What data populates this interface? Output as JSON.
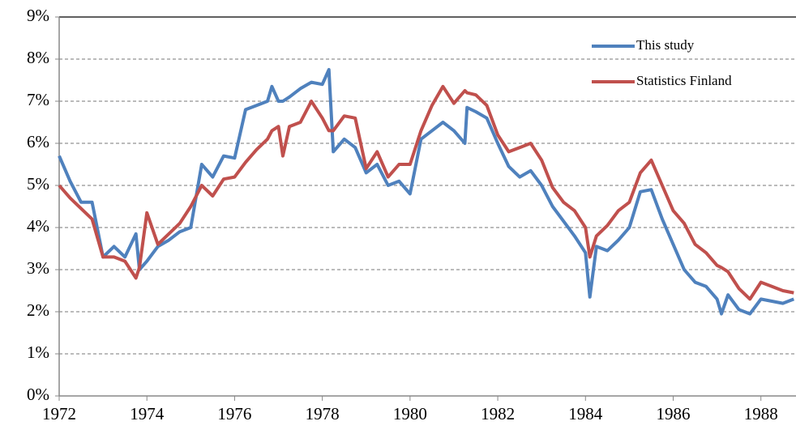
{
  "chart_data": {
    "type": "line",
    "x": [
      1972,
      1972.25,
      1972.5,
      1972.75,
      1973,
      1973.25,
      1973.5,
      1973.75,
      1973.83,
      1974,
      1974.25,
      1974.5,
      1974.75,
      1975,
      1975.25,
      1975.5,
      1975.75,
      1976,
      1976.25,
      1976.5,
      1976.75,
      1976.85,
      1977,
      1977.1,
      1977.25,
      1977.5,
      1977.75,
      1978,
      1978.15,
      1978.25,
      1978.5,
      1978.75,
      1979,
      1979.25,
      1979.5,
      1979.75,
      1980,
      1980.25,
      1980.5,
      1980.75,
      1981,
      1981.25,
      1981.3,
      1981.5,
      1981.75,
      1982,
      1982.25,
      1982.5,
      1982.75,
      1983,
      1983.25,
      1983.5,
      1983.75,
      1984,
      1984.1,
      1984.25,
      1984.5,
      1984.75,
      1985,
      1985.25,
      1985.5,
      1985.75,
      1986,
      1986.25,
      1986.5,
      1986.75,
      1987,
      1987.1,
      1987.25,
      1987.5,
      1987.75,
      1988,
      1988.25,
      1988.5,
      1988.75
    ],
    "series": [
      {
        "name": "This study",
        "color": "#4f81bd",
        "values": [
          5.7,
          5.1,
          4.6,
          4.6,
          3.3,
          3.55,
          3.3,
          3.85,
          3.0,
          3.2,
          3.55,
          3.7,
          3.9,
          4.0,
          5.5,
          5.2,
          5.7,
          5.65,
          6.8,
          6.9,
          7.0,
          7.35,
          7.0,
          7.0,
          7.1,
          7.3,
          7.45,
          7.4,
          7.75,
          5.8,
          6.1,
          5.9,
          5.3,
          5.5,
          5.0,
          5.1,
          4.8,
          6.1,
          6.3,
          6.5,
          6.3,
          6.0,
          6.85,
          6.75,
          6.6,
          6.0,
          5.45,
          5.2,
          5.35,
          5.0,
          4.5,
          4.15,
          3.8,
          3.4,
          2.35,
          3.55,
          3.45,
          3.7,
          4.0,
          4.85,
          4.9,
          4.2,
          3.6,
          3.0,
          2.7,
          2.6,
          2.3,
          1.95,
          2.4,
          2.05,
          1.95,
          2.3,
          2.25,
          2.2,
          2.3
        ]
      },
      {
        "name": "Statistics Finland",
        "color": "#c0504d",
        "values": [
          5.0,
          4.7,
          4.45,
          4.2,
          3.3,
          3.3,
          3.2,
          2.8,
          3.05,
          4.35,
          3.6,
          3.85,
          4.1,
          4.5,
          5.0,
          4.75,
          5.15,
          5.2,
          5.55,
          5.85,
          6.1,
          6.3,
          6.4,
          5.7,
          6.4,
          6.5,
          7.0,
          6.6,
          6.3,
          6.3,
          6.65,
          6.6,
          5.4,
          5.8,
          5.2,
          5.5,
          5.5,
          6.3,
          6.9,
          7.35,
          6.95,
          7.25,
          7.2,
          7.15,
          6.9,
          6.2,
          5.8,
          5.9,
          6.0,
          5.6,
          4.95,
          4.6,
          4.4,
          4.0,
          3.3,
          3.8,
          4.05,
          4.4,
          4.6,
          5.3,
          5.6,
          5.0,
          4.4,
          4.1,
          3.6,
          3.4,
          3.1,
          3.05,
          2.95,
          2.55,
          2.3,
          2.7,
          2.6,
          2.5,
          2.45
        ]
      }
    ],
    "xlim": [
      1972,
      1988.8
    ],
    "xticks": [
      1972,
      1974,
      1976,
      1978,
      1980,
      1982,
      1984,
      1986,
      1988
    ],
    "ylim": [
      0,
      9
    ],
    "yticks": [
      {
        "value": 0,
        "label": "0%"
      },
      {
        "value": 1,
        "label": "1%"
      },
      {
        "value": 2,
        "label": "2%"
      },
      {
        "value": 3,
        "label": "3%"
      },
      {
        "value": 4,
        "label": "4%"
      },
      {
        "value": 5,
        "label": "5%"
      },
      {
        "value": 6,
        "label": "6%"
      },
      {
        "value": 7,
        "label": "7%"
      },
      {
        "value": 8,
        "label": "8%"
      },
      {
        "value": 9,
        "label": "9%"
      }
    ],
    "grid": true,
    "legend": "upper right"
  }
}
